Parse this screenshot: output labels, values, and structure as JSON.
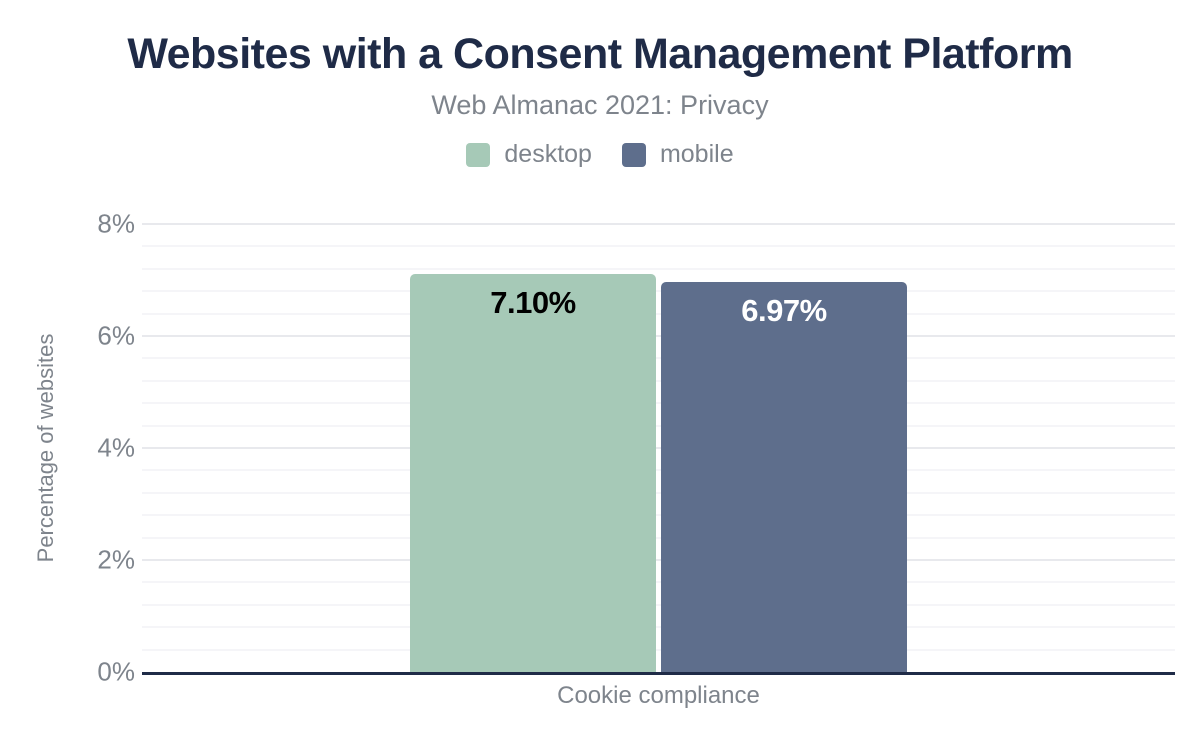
{
  "header": {
    "title": "Websites with a Consent Management Platform",
    "subtitle": "Web Almanac 2021: Privacy"
  },
  "legend": [
    {
      "label": "desktop",
      "color": "#a6c9b7"
    },
    {
      "label": "mobile",
      "color": "#5e6e8c"
    }
  ],
  "chart_data": {
    "type": "bar",
    "title": "Websites with a Consent Management Platform",
    "subtitle": "Web Almanac 2021: Privacy",
    "categories": [
      "Cookie compliance"
    ],
    "series": [
      {
        "name": "desktop",
        "values": [
          7.1
        ],
        "data_labels": [
          "7.10%"
        ],
        "color": "#a6c9b7",
        "label_color": "#000000"
      },
      {
        "name": "mobile",
        "values": [
          6.97
        ],
        "data_labels": [
          "6.97%"
        ],
        "color": "#5e6e8c",
        "label_color": "#ffffff"
      }
    ],
    "xlabel": "Cookie compliance",
    "ylabel": "Percentage of websites",
    "ylim": [
      0,
      8
    ],
    "yticks": [
      "0%",
      "2%",
      "4%",
      "6%",
      "8%"
    ],
    "ytick_values": [
      0,
      2,
      4,
      6,
      8
    ],
    "major_tick_interval": 2,
    "minor_tick_interval": 0.4,
    "grid": true,
    "legend_position": "top"
  },
  "colors": {
    "background": "#ffffff",
    "title_text": "#1f2b47",
    "muted_text": "#7e848c",
    "baseline": "#1f2b47",
    "major_grid": "#e8e9ed",
    "minor_grid": "#f5f5f8"
  }
}
